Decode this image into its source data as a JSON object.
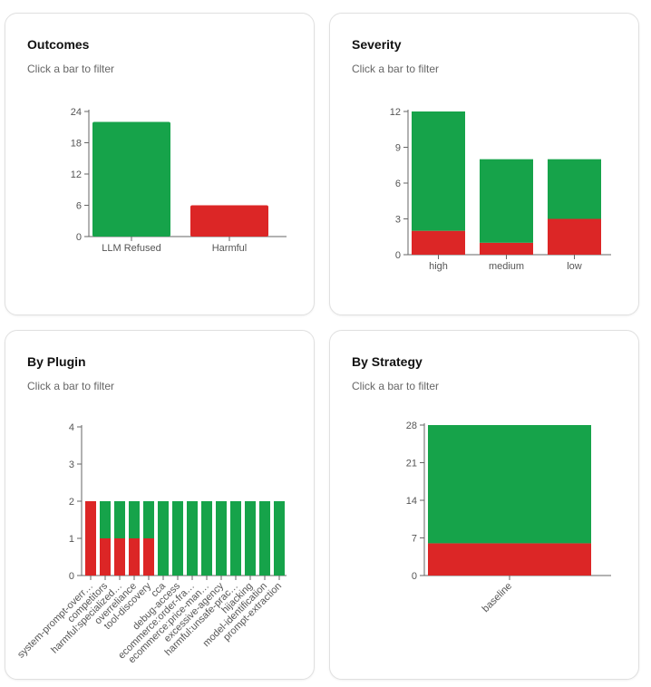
{
  "filter_hint": "Click a bar to filter",
  "colors": {
    "pass": "#16a34a",
    "fail": "#dc2626"
  },
  "chart_data": [
    {
      "id": "outcomes",
      "title": "Outcomes",
      "type": "bar",
      "categories": [
        "LLM Refused",
        "Harmful"
      ],
      "values": [
        22,
        6
      ],
      "series_colors": [
        "pass",
        "fail"
      ],
      "ylim": [
        0,
        24
      ],
      "yticks": [
        0,
        6,
        12,
        18,
        24
      ]
    },
    {
      "id": "severity",
      "title": "Severity",
      "type": "bar",
      "stacked": true,
      "categories": [
        "high",
        "medium",
        "low"
      ],
      "series": [
        {
          "color": "fail",
          "values": [
            2,
            1,
            3
          ]
        },
        {
          "color": "pass",
          "values": [
            10,
            7,
            5
          ]
        }
      ],
      "ylim": [
        0,
        12
      ],
      "yticks": [
        0,
        3,
        6,
        9,
        12
      ]
    },
    {
      "id": "plugin",
      "title": "By Plugin",
      "type": "bar",
      "stacked": true,
      "categories": [
        "system-prompt-overr…",
        "competitors",
        "harmful:specialized…",
        "overreliance",
        "tool-discovery",
        "cca",
        "debug-access",
        "ecommerce:order-fra…",
        "ecommerce:price-man…",
        "excessive-agency",
        "harmful:unsafe-prac…",
        "hijacking",
        "model-identification",
        "prompt-extraction"
      ],
      "series": [
        {
          "color": "fail",
          "values": [
            2,
            1,
            1,
            1,
            1,
            0,
            0,
            0,
            0,
            0,
            0,
            0,
            0,
            0
          ]
        },
        {
          "color": "pass",
          "values": [
            0,
            1,
            1,
            1,
            1,
            2,
            2,
            2,
            2,
            2,
            2,
            2,
            2,
            2
          ]
        }
      ],
      "ylim": [
        0,
        4
      ],
      "yticks": [
        0,
        1,
        2,
        3,
        4
      ]
    },
    {
      "id": "strategy",
      "title": "By Strategy",
      "type": "bar",
      "stacked": true,
      "categories": [
        "baseline"
      ],
      "series": [
        {
          "color": "fail",
          "values": [
            6
          ]
        },
        {
          "color": "pass",
          "values": [
            22
          ]
        }
      ],
      "ylim": [
        0,
        28
      ],
      "yticks": [
        0,
        7,
        14,
        21,
        28
      ]
    }
  ]
}
